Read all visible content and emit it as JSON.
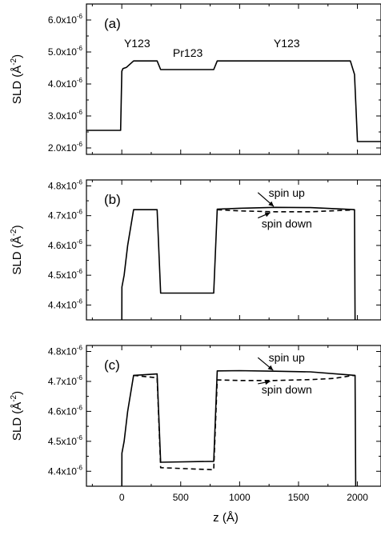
{
  "chart_data": [
    {
      "type": "line",
      "panel_label": "(a)",
      "ylabel_main": "SLD (Å",
      "ylabel_exp": "-2",
      "ylabel_close": ")",
      "xlim": [
        -300,
        2200
      ],
      "ylim": [
        1.8e-06,
        6.5e-06
      ],
      "yticks": [
        {
          "mant": "2.0x10",
          "exp": "-6",
          "value": 2e-06
        },
        {
          "mant": "3.0x10",
          "exp": "-6",
          "value": 3e-06
        },
        {
          "mant": "4.0x10",
          "exp": "-6",
          "value": 4e-06
        },
        {
          "mant": "5.0x10",
          "exp": "-6",
          "value": 5e-06
        },
        {
          "mant": "6.0x10",
          "exp": "-6",
          "value": 6e-06
        }
      ],
      "series": [
        {
          "style": "solid",
          "x": [
            -300,
            -10,
            0,
            10,
            40,
            100,
            300,
            330,
            780,
            810,
            1940,
            1975,
            2000,
            2200
          ],
          "y": [
            2.55e-06,
            2.55e-06,
            4.4e-06,
            4.48e-06,
            4.52e-06,
            4.72e-06,
            4.72e-06,
            4.45e-06,
            4.45e-06,
            4.72e-06,
            4.72e-06,
            4.3e-06,
            2.2e-06,
            2.2e-06
          ]
        }
      ],
      "annotations": [
        {
          "text": "Y123",
          "x": 130,
          "y": 5.15e-06
        },
        {
          "text": "Pr123",
          "x": 560,
          "y": 4.85e-06
        },
        {
          "text": "Y123",
          "x": 1400,
          "y": 5.15e-06
        }
      ]
    },
    {
      "type": "line",
      "panel_label": "(b)",
      "ylabel_main": "SLD (Å",
      "ylabel_exp": "-2",
      "ylabel_close": ")",
      "xlim": [
        -300,
        2200
      ],
      "ylim": [
        4.35e-06,
        4.82e-06
      ],
      "yticks": [
        {
          "mant": "4.4x10",
          "exp": "-6",
          "value": 4.4e-06
        },
        {
          "mant": "4.5x10",
          "exp": "-6",
          "value": 4.5e-06
        },
        {
          "mant": "4.6x10",
          "exp": "-6",
          "value": 4.6e-06
        },
        {
          "mant": "4.7x10",
          "exp": "-6",
          "value": 4.7e-06
        },
        {
          "mant": "4.8x10",
          "exp": "-6",
          "value": 4.8e-06
        }
      ],
      "series": [
        {
          "name": "spin up",
          "style": "solid",
          "x": [
            0,
            1,
            20,
            50,
            100,
            300,
            330,
            780,
            810,
            1000,
            1300,
            1600,
            1950,
            1975,
            1980
          ],
          "y": [
            4.35e-06,
            4.46e-06,
            4.5e-06,
            4.6e-06,
            4.72e-06,
            4.72e-06,
            4.44e-06,
            4.44e-06,
            4.722e-06,
            4.725e-06,
            4.728e-06,
            4.727e-06,
            4.721e-06,
            4.72e-06,
            4.35e-06
          ]
        },
        {
          "name": "spin down",
          "style": "dashed",
          "x": [
            810,
            1000,
            1300,
            1600,
            1950,
            1975
          ],
          "y": [
            4.72e-06,
            4.716e-06,
            4.713e-06,
            4.713e-06,
            4.719e-06,
            4.72e-06
          ]
        }
      ],
      "annotations": [
        {
          "text": "spin up",
          "x": 1400,
          "y": 4.764e-06,
          "arrow_to": [
            1290,
            4.731e-06
          ]
        },
        {
          "text": "spin down",
          "x": 1400,
          "y": 4.66e-06,
          "arrow_to": [
            1260,
            4.71e-06
          ]
        }
      ]
    },
    {
      "type": "line",
      "panel_label": "(c)",
      "ylabel_main": "SLD (Å",
      "ylabel_exp": "-2",
      "ylabel_close": ")",
      "xlim": [
        -300,
        2200
      ],
      "ylim": [
        4.35e-06,
        4.82e-06
      ],
      "xticks": [
        0,
        500,
        1000,
        1500,
        2000
      ],
      "xlabel": "z (Å)",
      "yticks": [
        {
          "mant": "4.4x10",
          "exp": "-6",
          "value": 4.4e-06
        },
        {
          "mant": "4.5x10",
          "exp": "-6",
          "value": 4.5e-06
        },
        {
          "mant": "4.6x10",
          "exp": "-6",
          "value": 4.6e-06
        },
        {
          "mant": "4.7x10",
          "exp": "-6",
          "value": 4.7e-06
        },
        {
          "mant": "4.8x10",
          "exp": "-6",
          "value": 4.8e-06
        }
      ],
      "series": [
        {
          "name": "spin up",
          "style": "solid",
          "x": [
            0,
            1,
            20,
            50,
            100,
            300,
            330,
            780,
            810,
            1000,
            1300,
            1600,
            1950,
            1980,
            1985
          ],
          "y": [
            4.35e-06,
            4.46e-06,
            4.5e-06,
            4.6e-06,
            4.72e-06,
            4.725e-06,
            4.43e-06,
            4.433e-06,
            4.735e-06,
            4.736e-06,
            4.734e-06,
            4.732e-06,
            4.721e-06,
            4.72e-06,
            4.35e-06
          ]
        },
        {
          "name": "spin down",
          "style": "dashed",
          "x": [
            100,
            300,
            330,
            780,
            810,
            1000,
            1300,
            1600,
            1800,
            1950,
            1980
          ],
          "y": [
            4.72e-06,
            4.712e-06,
            4.412e-06,
            4.405e-06,
            4.705e-06,
            4.703e-06,
            4.703e-06,
            4.706e-06,
            4.71e-06,
            4.719e-06,
            4.72e-06
          ]
        }
      ],
      "annotations": [
        {
          "text": "spin up",
          "x": 1400,
          "y": 4.766e-06,
          "arrow_to": [
            1285,
            4.737e-06
          ]
        },
        {
          "text": "spin down",
          "x": 1400,
          "y": 4.66e-06,
          "arrow_to": [
            1260,
            4.7e-06
          ]
        }
      ]
    }
  ]
}
